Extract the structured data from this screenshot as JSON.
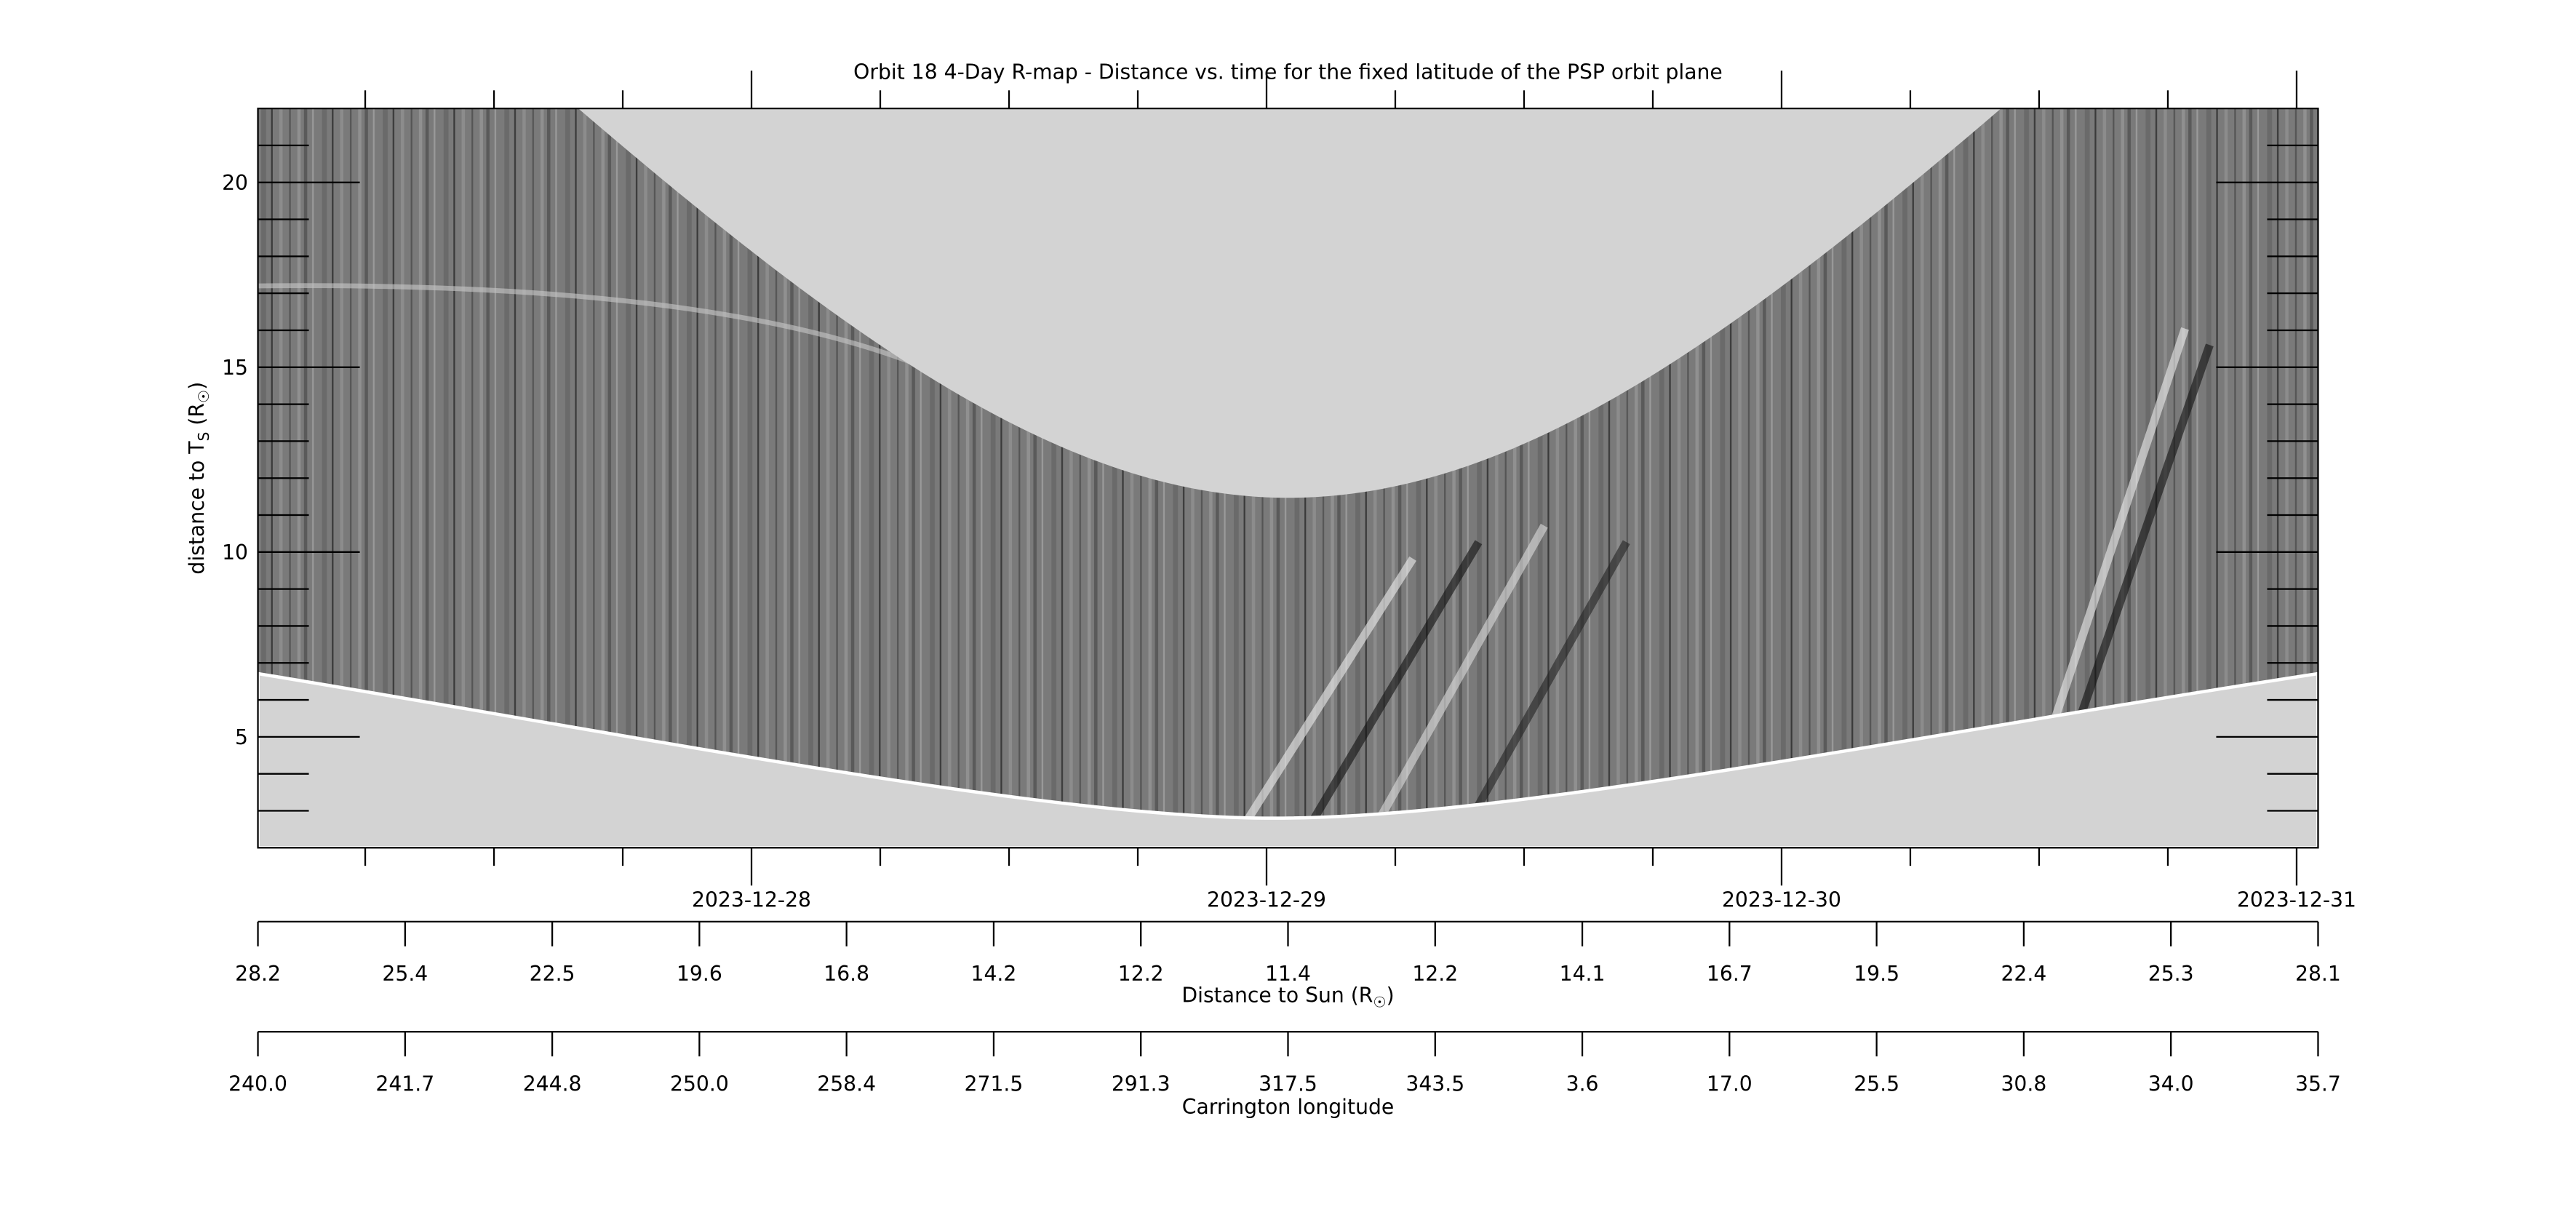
{
  "chart_data": {
    "type": "rmap",
    "title": "Orbit 18 4-Day R-map - Distance vs. time for the fixed latitude of the PSP orbit plane",
    "ylabel": [
      "distance to T",
      "S",
      " (R",
      "☉",
      ")"
    ],
    "ylim": [
      2,
      22
    ],
    "yticks": [
      5,
      10,
      15,
      20
    ],
    "yminorticks": [
      3,
      4,
      6,
      7,
      8,
      9,
      11,
      12,
      13,
      14,
      16,
      17,
      18,
      19,
      21
    ],
    "xlim": [
      "2023-12-27T01:00",
      "2023-12-31T01:00"
    ],
    "xticks": [
      "2023-12-28",
      "2023-12-29",
      "2023-12-30",
      "2023-12-31"
    ],
    "xminorticks": [
      "2023-12-27T06:00",
      "2023-12-27T12:00",
      "2023-12-27T18:00",
      "2023-12-28T06:00",
      "2023-12-28T12:00",
      "2023-12-28T18:00",
      "2023-12-29T06:00",
      "2023-12-29T12:00",
      "2023-12-29T18:00",
      "2023-12-30T06:00",
      "2023-12-30T12:00",
      "2023-12-30T18:00"
    ],
    "distance_axis": {
      "label": [
        "Distance to Sun (R",
        "☉",
        ")"
      ],
      "categories": [
        "28.2",
        "25.4",
        "22.5",
        "19.6",
        "16.8",
        "14.2",
        "12.2",
        "11.4",
        "12.2",
        "14.1",
        "16.7",
        "19.5",
        "22.4",
        "25.3",
        "28.1"
      ]
    },
    "carrington_axis": {
      "label": "Carrington longitude",
      "categories": [
        "240.0",
        "241.7",
        "244.8",
        "250.0",
        "258.4",
        "271.5",
        "291.3",
        "317.5",
        "343.5",
        "3.6",
        "17.0",
        "25.5",
        "30.8",
        "34.0",
        "35.7"
      ]
    }
  }
}
